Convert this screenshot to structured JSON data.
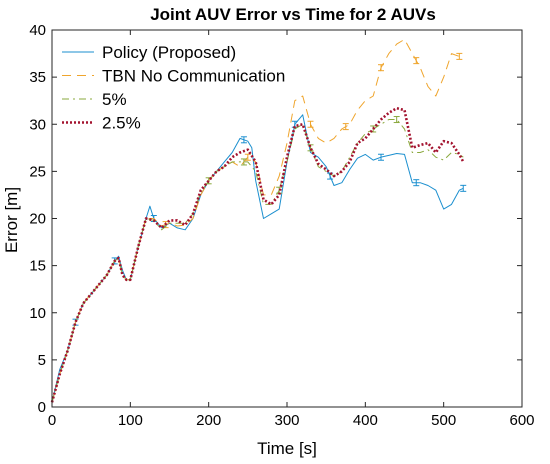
{
  "chart_data": {
    "type": "line",
    "title": "Joint AUV Error vs Time for 2 AUVs",
    "xlabel": "Time [s]",
    "ylabel": "Error [m]",
    "xlim": [
      0,
      600
    ],
    "ylim": [
      0,
      40
    ],
    "xticks": [
      0,
      100,
      200,
      300,
      400,
      500,
      600
    ],
    "yticks": [
      0,
      5,
      10,
      15,
      20,
      25,
      30,
      35,
      40
    ],
    "xtick_labels": [
      "0",
      "100",
      "200",
      "300",
      "400",
      "500",
      "600"
    ],
    "ytick_labels": [
      "0",
      "5",
      "10",
      "15",
      "20",
      "25",
      "30",
      "35",
      "40"
    ],
    "grid": false,
    "legend_position": "top-left",
    "series": [
      {
        "name": "Policy (Proposed)",
        "color": "#1b8fcf",
        "style": "solid",
        "x": [
          0,
          10,
          20,
          30,
          40,
          50,
          60,
          70,
          80,
          85,
          90,
          95,
          100,
          110,
          120,
          125,
          130,
          140,
          150,
          160,
          170,
          180,
          190,
          200,
          210,
          220,
          230,
          240,
          250,
          255,
          260,
          270,
          280,
          290,
          300,
          310,
          320,
          330,
          340,
          350,
          360,
          370,
          380,
          390,
          400,
          410,
          420,
          430,
          440,
          450,
          460,
          470,
          480,
          490,
          500,
          510,
          520,
          525
        ],
        "y": [
          0.5,
          4,
          6,
          9,
          11,
          12,
          13,
          14,
          15.5,
          16,
          14.5,
          13.5,
          13.5,
          17,
          20,
          21.3,
          20,
          19,
          19.5,
          19,
          18.8,
          20,
          22.5,
          24,
          25,
          26,
          27,
          28.5,
          28.2,
          27.5,
          24,
          20,
          20.5,
          21,
          26,
          30,
          31,
          27,
          26.5,
          25.5,
          23.5,
          23.8,
          25.2,
          26.4,
          26.8,
          26.2,
          26.5,
          26.7,
          26.9,
          26.8,
          23.8,
          23.8,
          23.5,
          23,
          21,
          21.5,
          23,
          23.2
        ],
        "error_bars_at": [
          30,
          80,
          130,
          245,
          310,
          355,
          420,
          465,
          525
        ]
      },
      {
        "name": "TBN No Communication",
        "color": "#efa52d",
        "style": "dashed",
        "x": [
          0,
          10,
          20,
          30,
          40,
          50,
          60,
          70,
          80,
          85,
          90,
          95,
          100,
          110,
          120,
          130,
          140,
          150,
          160,
          170,
          180,
          190,
          200,
          210,
          220,
          230,
          240,
          250,
          260,
          270,
          280,
          290,
          300,
          310,
          320,
          330,
          340,
          350,
          360,
          370,
          380,
          390,
          400,
          410,
          420,
          430,
          440,
          450,
          460,
          470,
          480,
          490,
          500,
          510,
          520,
          525
        ],
        "y": [
          0.5,
          3.5,
          6,
          9,
          11,
          12,
          13,
          14,
          15.5,
          15.8,
          14,
          13.5,
          13.5,
          17,
          20,
          20,
          19.2,
          19.5,
          19.2,
          19.3,
          20,
          22.5,
          24,
          25,
          25.5,
          26,
          25.5,
          26.5,
          26,
          22.5,
          22.5,
          24.5,
          28,
          32.5,
          33,
          30,
          28.5,
          28,
          28.5,
          29.5,
          30,
          31.5,
          32.5,
          33,
          36,
          37.5,
          38.5,
          39,
          37.5,
          36,
          34,
          33,
          35,
          37.5,
          37.2,
          37
        ],
        "error_bars_at": [
          145,
          250,
          330,
          375,
          420,
          465,
          520
        ]
      },
      {
        "name": "5%",
        "color": "#8aa83c",
        "style": "dashdot",
        "x": [
          0,
          10,
          20,
          30,
          40,
          50,
          60,
          70,
          80,
          85,
          90,
          95,
          100,
          110,
          120,
          130,
          140,
          150,
          160,
          170,
          180,
          190,
          200,
          210,
          220,
          230,
          240,
          250,
          260,
          270,
          280,
          290,
          300,
          310,
          320,
          330,
          340,
          350,
          360,
          370,
          380,
          390,
          400,
          410,
          420,
          430,
          440,
          450,
          460,
          470,
          480,
          490,
          500,
          510,
          520,
          525
        ],
        "y": [
          0.5,
          3.5,
          6,
          9,
          11,
          12,
          13,
          14,
          15.5,
          15.8,
          14,
          13.5,
          13.5,
          17,
          20,
          19.8,
          18.8,
          19.5,
          19.5,
          19.5,
          20.5,
          22.8,
          24,
          25,
          25.5,
          26,
          26,
          26,
          25,
          21.5,
          21.5,
          23,
          26,
          29.5,
          30,
          27.5,
          25.5,
          25,
          24.5,
          25,
          26.5,
          28,
          29,
          29.5,
          30,
          30.5,
          30.5,
          29.5,
          27,
          27,
          27.3,
          26.5,
          26.2,
          27,
          26.8,
          26.5
        ],
        "error_bars_at": [
          200,
          245,
          290,
          330,
          410,
          440
        ]
      },
      {
        "name": "2.5%",
        "color": "#a3132f",
        "style": "dotted",
        "x": [
          0,
          10,
          20,
          30,
          40,
          50,
          60,
          70,
          80,
          85,
          90,
          95,
          100,
          110,
          120,
          130,
          140,
          150,
          160,
          170,
          180,
          190,
          200,
          210,
          220,
          230,
          240,
          250,
          260,
          270,
          280,
          290,
          300,
          310,
          320,
          330,
          340,
          350,
          360,
          370,
          380,
          390,
          400,
          410,
          420,
          430,
          440,
          450,
          460,
          470,
          480,
          490,
          500,
          510,
          520,
          525
        ],
        "y": [
          0.5,
          3.5,
          6,
          9,
          11,
          12,
          13,
          14,
          15.5,
          15.8,
          14,
          13.5,
          13.5,
          17,
          20,
          19.8,
          19,
          19.8,
          19.8,
          19.3,
          20.5,
          23,
          24,
          25,
          25.5,
          26.5,
          27,
          27.3,
          26,
          22,
          21.5,
          22.5,
          26.5,
          29.8,
          30,
          27.5,
          25.8,
          25.2,
          24.5,
          25,
          26,
          28,
          28.5,
          29.5,
          30.5,
          31.2,
          31.7,
          31.5,
          27.5,
          27.8,
          28,
          27,
          28.2,
          28,
          26.8,
          26
        ]
      }
    ]
  }
}
